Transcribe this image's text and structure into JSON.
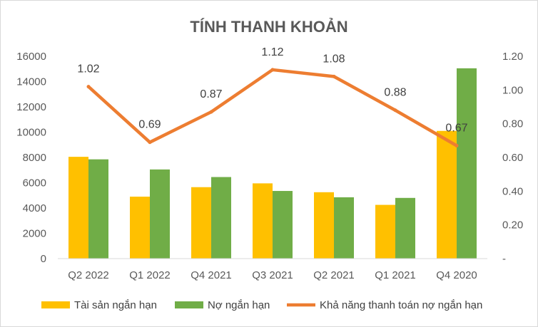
{
  "chart_data": {
    "type": "bar",
    "title": "TÍNH THANH KHOẢN",
    "categories": [
      "Q2 2022",
      "Q1 2022",
      "Q4 2021",
      "Q3 2021",
      "Q2 2021",
      "Q1 2021",
      "Q4 2020"
    ],
    "series": [
      {
        "name": "Tài sản ngắn hạn",
        "type": "bar",
        "axis": "left",
        "color": "#FFC000",
        "values": [
          8050,
          4900,
          5650,
          5950,
          5250,
          4250,
          10100
        ]
      },
      {
        "name": "Nợ ngắn hạn",
        "type": "bar",
        "axis": "left",
        "color": "#70AD47",
        "values": [
          7850,
          7050,
          6450,
          5350,
          4850,
          4800,
          15050
        ]
      },
      {
        "name": "Khả năng thanh toán nợ ngắn hạn",
        "type": "line",
        "axis": "right",
        "color": "#ED7D31",
        "values": [
          1.02,
          0.69,
          0.87,
          1.12,
          1.08,
          0.88,
          0.67
        ],
        "labels": [
          "1.02",
          "0.69",
          "0.87",
          "1.12",
          "1.08",
          "0.88",
          "0.67"
        ]
      }
    ],
    "y_left": {
      "min": 0,
      "max": 16000,
      "ticks": [
        "0",
        "2000",
        "4000",
        "6000",
        "8000",
        "10000",
        "12000",
        "14000",
        "16000"
      ]
    },
    "y_right": {
      "min": 0,
      "max": 1.2,
      "ticks": [
        "-",
        "0.20",
        "0.40",
        "0.60",
        "0.80",
        "1.00",
        "1.20"
      ]
    },
    "grid": false,
    "legend_position": "bottom"
  }
}
